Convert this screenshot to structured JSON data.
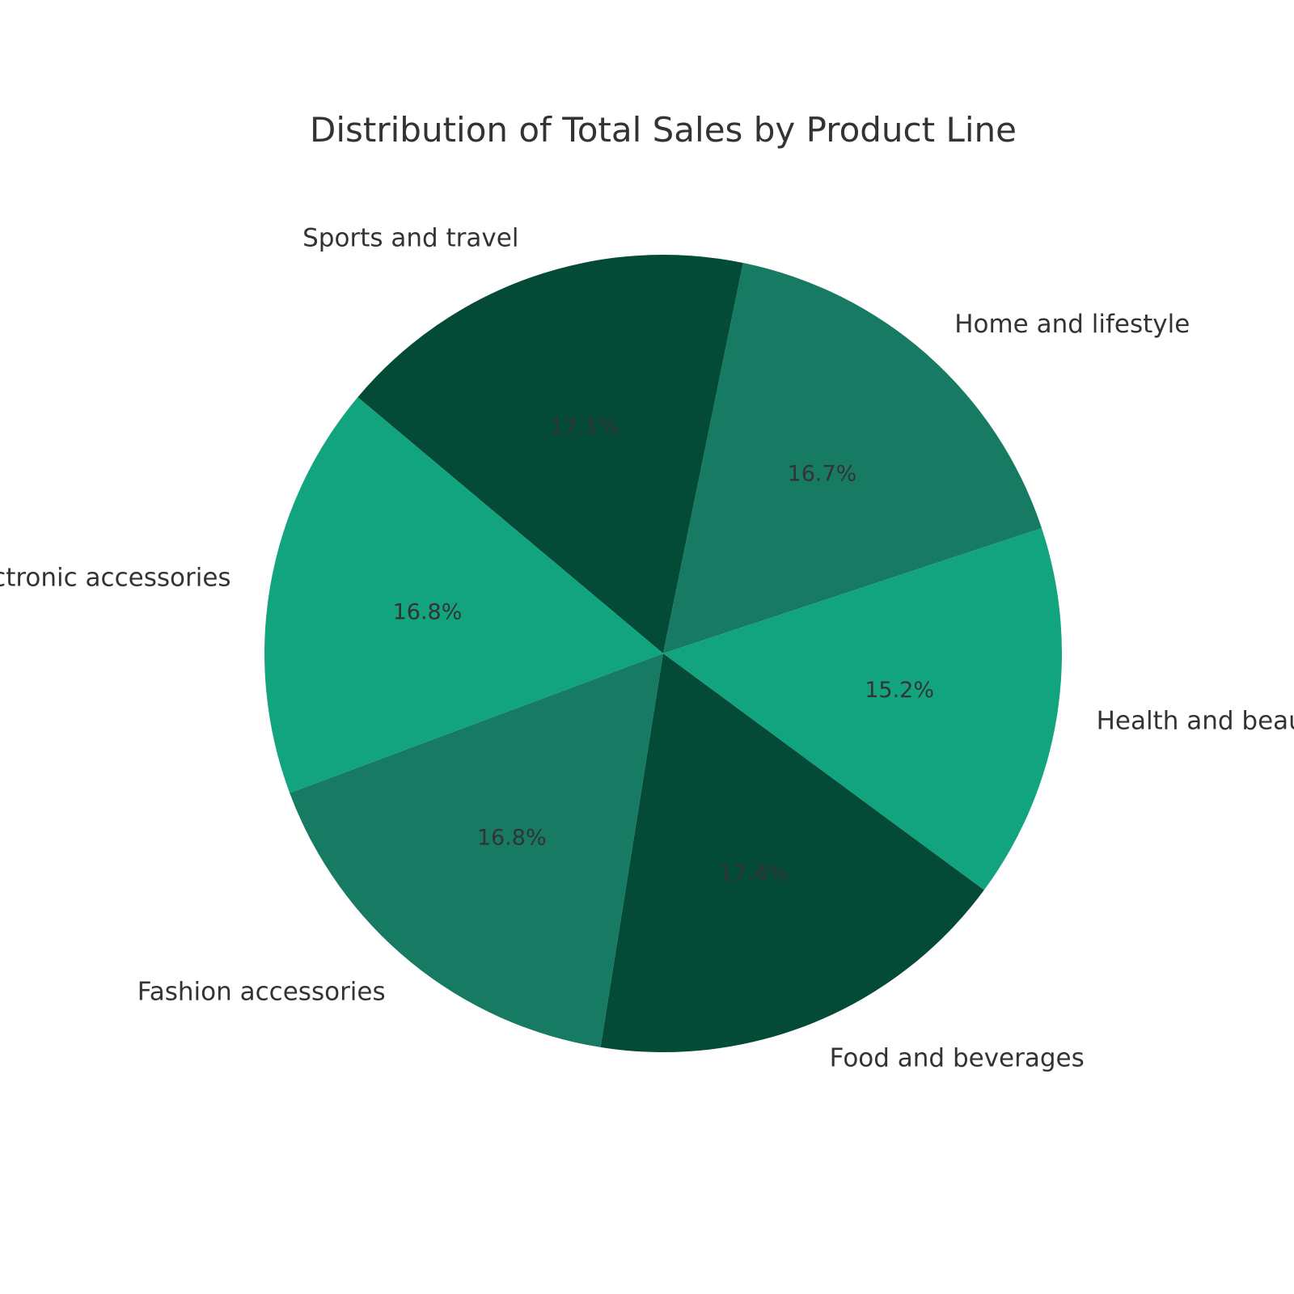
{
  "chart_data": {
    "type": "pie",
    "title": "Distribution of Total Sales by Product Line",
    "categories": [
      "Sports and travel",
      "Home and lifestyle",
      "Health and beauty",
      "Food and beverages",
      "Fashion accessories",
      "Electronic accessories"
    ],
    "values": [
      17.1,
      16.7,
      15.2,
      17.4,
      16.8,
      16.8
    ],
    "value_labels": [
      "17.1%",
      "16.7%",
      "15.2%",
      "17.4%",
      "16.8%",
      "16.8%"
    ],
    "colors": [
      "#034A37",
      "#177A62",
      "#12A47F",
      "#034A37",
      "#177A62",
      "#12A47F"
    ],
    "start_angle_deg": 140,
    "direction": "clockwise",
    "legend": "none"
  }
}
